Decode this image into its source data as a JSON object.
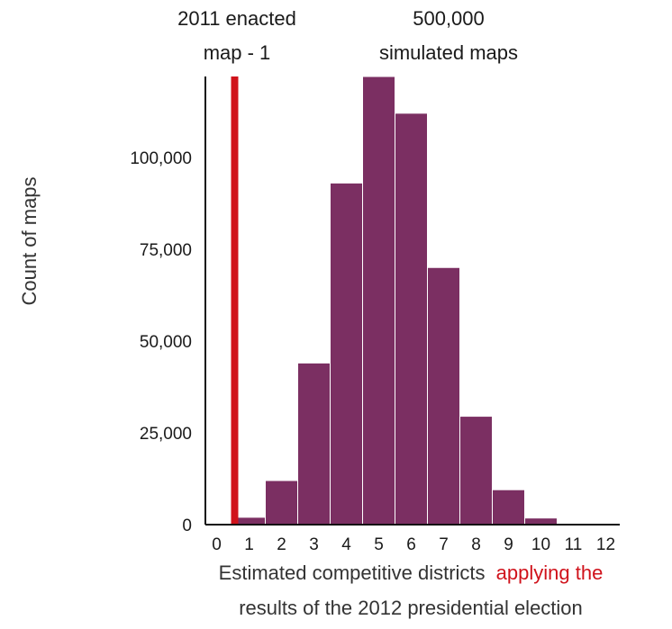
{
  "chart_data": {
    "type": "bar",
    "categories": [
      "0",
      "1",
      "2",
      "3",
      "4",
      "5",
      "6",
      "7",
      "8",
      "9",
      "10",
      "11",
      "12"
    ],
    "values": [
      0,
      2000,
      12000,
      44000,
      93000,
      122000,
      112000,
      70000,
      29500,
      9500,
      1800,
      300,
      50
    ],
    "ylabel": "Count of maps",
    "xlabel": {
      "part1": "Estimated competitive districts",
      "part2": "applying the",
      "part3": "results of the 2012 presidential election"
    },
    "yticks": [
      0,
      25000,
      50000,
      75000,
      100000
    ],
    "ytick_labels": [
      "0",
      "25,000",
      "50,000",
      "75,000",
      "100,000"
    ],
    "ylim": [
      0,
      122000
    ],
    "grid": false,
    "annotations": {
      "enacted": {
        "line1": "2011 enacted",
        "line2": "map - 1",
        "x_value": 1
      },
      "simulated": {
        "line1": "500,000",
        "line2": "simulated maps"
      }
    },
    "colors": {
      "bar_fill": "#7b2f62",
      "bar_stroke": "#ffffff",
      "enacted_line": "#d0121b",
      "axis": "#111111",
      "highlight_text": "#d0121b"
    }
  }
}
